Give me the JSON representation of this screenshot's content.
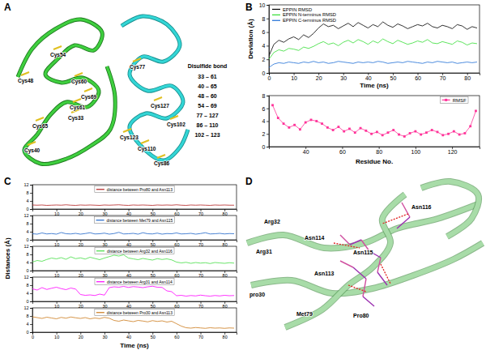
{
  "panel_labels": [
    "A",
    "B",
    "C",
    "D"
  ],
  "panel_a": {
    "residue_labels": [
      "Cys54",
      "Cys48",
      "Cys60",
      "Cys69",
      "Cys61",
      "Cys33",
      "Cys65",
      "Cys40",
      "Cys127",
      "Cys77",
      "Cys102",
      "Cys123",
      "Cys110",
      "Cys86"
    ],
    "table": {
      "title": "Disulfide bond",
      "rows": [
        "33 – 61",
        "40 – 65",
        "48 – 60",
        "54 – 69",
        "77 – 127",
        "86 – 110",
        "102 – 123"
      ]
    }
  },
  "panel_d": {
    "residue_labels": [
      "Asn116",
      "Arg32",
      "Arg31",
      "Asn114",
      "Asn115",
      "Asn113",
      "pro30",
      "Met79",
      "Pro80"
    ]
  },
  "chart_data": [
    {
      "type": "line",
      "x_label": "Time (ns)",
      "y_label": "Deviation (Å)",
      "x": [
        0,
        2,
        4,
        6,
        8,
        10,
        12,
        14,
        16,
        18,
        20,
        22,
        24,
        26,
        28,
        30,
        32,
        34,
        36,
        38,
        40,
        42,
        44,
        46,
        48,
        50,
        52,
        54,
        56,
        58,
        60,
        62,
        64,
        66,
        68,
        70,
        72,
        74,
        76,
        78,
        80,
        82,
        84
      ],
      "xlim": [
        0,
        85
      ],
      "xticks": [
        0,
        10,
        20,
        30,
        40,
        50,
        60,
        70,
        80
      ],
      "ylim": [
        0,
        10
      ],
      "yticks": [
        0,
        2,
        4,
        6,
        8,
        10
      ],
      "legend": "upper left",
      "series": [
        {
          "name": "EPPIN RMSD",
          "color": "#000000",
          "values": [
            2.5,
            4.2,
            4.8,
            4.5,
            5.0,
            5.3,
            4.9,
            5.6,
            5.2,
            5.8,
            6.6,
            7.2,
            6.8,
            7.0,
            6.5,
            6.9,
            7.3,
            6.8,
            7.4,
            7.0,
            6.6,
            7.1,
            6.8,
            7.5,
            7.0,
            6.7,
            7.2,
            6.9,
            6.5,
            6.8,
            7.1,
            6.9,
            7.3,
            6.8,
            6.6,
            7.0,
            6.8,
            6.5,
            7.1,
            6.9,
            6.4,
            6.8,
            6.6
          ]
        },
        {
          "name": "EPPIN N-terminus RMSD",
          "color": "#33dd33",
          "values": [
            2.0,
            3.0,
            3.4,
            3.2,
            3.6,
            3.5,
            3.3,
            3.8,
            3.6,
            3.9,
            4.3,
            4.6,
            4.2,
            4.4,
            4.0,
            4.5,
            4.8,
            4.4,
            4.9,
            4.6,
            4.2,
            4.7,
            4.4,
            5.0,
            4.6,
            4.3,
            4.8,
            4.5,
            4.2,
            4.4,
            4.7,
            4.5,
            4.9,
            4.4,
            4.3,
            4.6,
            4.4,
            4.2,
            4.7,
            4.5,
            4.1,
            4.4,
            4.3
          ]
        },
        {
          "name": "EPPIN C-terminus RMSD",
          "color": "#1f6fd6",
          "values": [
            0.8,
            1.3,
            1.5,
            1.4,
            1.6,
            1.5,
            1.4,
            1.6,
            1.5,
            1.7,
            1.5,
            1.6,
            1.4,
            1.5,
            1.7,
            1.6,
            1.5,
            1.4,
            1.6,
            1.5,
            1.6,
            1.5,
            1.7,
            1.6,
            1.4,
            1.5,
            1.6,
            1.5,
            1.7,
            1.6,
            1.5,
            1.4,
            1.6,
            1.5,
            1.7,
            1.6,
            1.5,
            1.6,
            1.4,
            1.5,
            1.6,
            1.5,
            1.6
          ]
        }
      ]
    },
    {
      "type": "line",
      "x_label": "Residue No.",
      "x": [
        22,
        25,
        28,
        31,
        34,
        37,
        40,
        43,
        46,
        49,
        52,
        55,
        58,
        61,
        64,
        67,
        70,
        73,
        76,
        79,
        82,
        85,
        88,
        91,
        94,
        97,
        100,
        103,
        106,
        109,
        112,
        115,
        118,
        121,
        124,
        127,
        130,
        133
      ],
      "xlim": [
        20,
        135
      ],
      "xticks": [
        40,
        60,
        80,
        100,
        120
      ],
      "ylim": [
        0,
        8
      ],
      "yticks": [
        0,
        2,
        4,
        6,
        8
      ],
      "legend": "upper right",
      "series": [
        {
          "name": "RMSF",
          "color": "#ff3399",
          "marker": "square",
          "values": [
            6.5,
            4.5,
            3.6,
            3.0,
            3.4,
            2.7,
            3.8,
            4.2,
            4.0,
            3.6,
            3.0,
            2.6,
            3.1,
            2.4,
            2.8,
            2.2,
            2.9,
            2.5,
            2.0,
            2.3,
            1.8,
            2.2,
            2.6,
            1.9,
            1.6,
            2.1,
            2.4,
            1.9,
            2.2,
            2.6,
            2.3,
            1.8,
            2.0,
            2.4,
            1.9,
            2.1,
            3.2,
            5.6
          ]
        }
      ]
    },
    {
      "type": "line",
      "x": [
        0,
        2,
        4,
        6,
        8,
        10,
        12,
        14,
        16,
        18,
        20,
        22,
        24,
        26,
        28,
        30,
        32,
        34,
        36,
        38,
        40,
        42,
        44,
        46,
        48,
        50,
        52,
        54,
        56,
        58,
        60,
        62,
        64,
        66,
        68,
        70,
        72,
        74,
        76,
        78,
        80,
        82,
        84
      ],
      "xlim": [
        0,
        85
      ],
      "xticks": [
        10,
        20,
        30,
        40,
        50,
        60,
        70,
        80
      ],
      "ylim": [
        0,
        12
      ],
      "yticks": [
        0,
        4,
        8,
        12
      ],
      "legend": "upper center",
      "series": [
        {
          "name": "distance between Pro80 and Asn113",
          "color": "#b22222",
          "values": [
            2.0,
            1.9,
            2.0,
            1.8,
            1.9,
            2.0,
            1.9,
            2.1,
            1.9,
            1.8,
            2.0,
            1.9,
            2.0,
            1.9,
            1.8,
            2.0,
            1.9,
            2.0,
            2.1,
            1.9,
            1.8,
            2.0,
            1.9,
            2.0,
            1.9,
            1.8,
            2.0,
            1.9,
            2.0,
            1.9,
            2.1,
            1.9,
            1.8,
            2.0,
            1.9,
            2.0,
            1.9,
            1.8,
            2.0,
            1.9,
            2.0,
            1.9,
            1.9
          ]
        }
      ]
    },
    {
      "type": "line",
      "x": [
        0,
        2,
        4,
        6,
        8,
        10,
        12,
        14,
        16,
        18,
        20,
        22,
        24,
        26,
        28,
        30,
        32,
        34,
        36,
        38,
        40,
        42,
        44,
        46,
        48,
        50,
        52,
        54,
        56,
        58,
        60,
        62,
        64,
        66,
        68,
        70,
        72,
        74,
        76,
        78,
        80,
        82,
        84
      ],
      "xlim": [
        0,
        85
      ],
      "xticks": [
        10,
        20,
        30,
        40,
        50,
        60,
        70,
        80
      ],
      "ylim": [
        0,
        12
      ],
      "yticks": [
        0,
        4,
        8,
        12
      ],
      "legend": "upper center",
      "series": [
        {
          "name": "distance between Met79 and Asn115",
          "color": "#1e64c8",
          "values": [
            3.0,
            2.8,
            3.4,
            2.9,
            3.1,
            2.8,
            3.6,
            3.0,
            2.9,
            3.2,
            2.8,
            3.1,
            3.5,
            2.9,
            3.0,
            3.3,
            2.8,
            3.1,
            3.7,
            2.9,
            3.0,
            3.2,
            2.8,
            3.5,
            3.0,
            2.9,
            3.3,
            2.8,
            3.1,
            3.0,
            3.4,
            2.9,
            3.0,
            3.2,
            2.8,
            3.1,
            3.5,
            2.9,
            3.0,
            3.2,
            2.9,
            3.1,
            3.0
          ]
        }
      ]
    },
    {
      "type": "line",
      "y_label": "Distances (Å)",
      "x": [
        0,
        2,
        4,
        6,
        8,
        10,
        12,
        14,
        16,
        18,
        20,
        22,
        24,
        26,
        28,
        30,
        32,
        34,
        36,
        38,
        40,
        42,
        44,
        46,
        48,
        50,
        52,
        54,
        56,
        58,
        60,
        62,
        64,
        66,
        68,
        70,
        72,
        74,
        76,
        78,
        80,
        82,
        84
      ],
      "xlim": [
        0,
        85
      ],
      "xticks": [
        10,
        20,
        30,
        40,
        50,
        60,
        70,
        80
      ],
      "ylim": [
        0,
        12
      ],
      "yticks": [
        0,
        4,
        8,
        12
      ],
      "legend": "upper center",
      "series": [
        {
          "name": "distance between Arg32 and Asn116",
          "color": "#44dd44",
          "values": [
            4.2,
            5.0,
            4.6,
            5.5,
            6.2,
            5.8,
            6.4,
            5.6,
            6.8,
            5.9,
            6.3,
            5.7,
            6.6,
            6.0,
            5.4,
            6.2,
            6.9,
            7.6,
            7.2,
            7.8,
            6.2,
            5.8,
            5.4,
            6.0,
            5.6,
            5.2,
            5.9,
            5.5,
            5.8,
            5.3,
            4.2,
            3.8,
            4.1,
            3.6,
            4.0,
            3.7,
            3.9,
            3.5,
            4.0,
            3.8,
            3.6,
            3.9,
            3.7
          ]
        }
      ]
    },
    {
      "type": "line",
      "x": [
        0,
        2,
        4,
        6,
        8,
        10,
        12,
        14,
        16,
        18,
        20,
        22,
        24,
        26,
        28,
        30,
        32,
        34,
        36,
        38,
        40,
        42,
        44,
        46,
        48,
        50,
        52,
        54,
        56,
        58,
        60,
        62,
        64,
        66,
        68,
        70,
        72,
        74,
        76,
        78,
        80,
        82,
        84
      ],
      "xlim": [
        0,
        85
      ],
      "xticks": [
        10,
        20,
        30,
        40,
        50,
        60,
        70,
        80
      ],
      "ylim": [
        0,
        12
      ],
      "yticks": [
        0,
        4,
        8,
        12
      ],
      "legend": "upper center",
      "series": [
        {
          "name": "distance between Arg31 and Asn114",
          "color": "#ff00ff",
          "values": [
            6.2,
            5.6,
            6.8,
            5.9,
            6.5,
            7.0,
            6.3,
            5.8,
            6.6,
            6.1,
            3.4,
            3.0,
            3.2,
            2.9,
            3.6,
            3.1,
            6.8,
            7.2,
            7.0,
            7.4,
            6.9,
            7.3,
            7.1,
            6.8,
            7.2,
            7.5,
            7.0,
            6.9,
            5.2,
            4.8,
            2.8,
            3.0,
            2.6,
            2.9,
            2.7,
            3.1,
            2.8,
            2.6,
            2.9,
            2.7,
            3.0,
            2.8,
            2.9
          ]
        }
      ]
    },
    {
      "type": "line",
      "x_label": "Time (ns)",
      "x": [
        0,
        2,
        4,
        6,
        8,
        10,
        12,
        14,
        16,
        18,
        20,
        22,
        24,
        26,
        28,
        30,
        32,
        34,
        36,
        38,
        40,
        42,
        44,
        46,
        48,
        50,
        52,
        54,
        56,
        58,
        60,
        62,
        64,
        66,
        68,
        70,
        72,
        74,
        76,
        78,
        80,
        82,
        84
      ],
      "xlim": [
        0,
        85
      ],
      "xticks": [
        0,
        10,
        20,
        30,
        40,
        50,
        60,
        70,
        80
      ],
      "ylim": [
        0,
        12
      ],
      "yticks": [
        0,
        4,
        8,
        12
      ],
      "legend": "upper center",
      "series": [
        {
          "name": "distance between Pro30 and Asn113",
          "color": "#cc7a1a",
          "values": [
            7.6,
            7.2,
            6.8,
            7.4,
            7.0,
            6.6,
            7.3,
            6.9,
            7.5,
            7.1,
            6.8,
            7.2,
            6.6,
            7.0,
            6.7,
            7.3,
            6.9,
            5.8,
            5.4,
            6.0,
            5.6,
            5.2,
            5.8,
            5.5,
            5.1,
            5.7,
            5.3,
            5.6,
            5.0,
            5.4,
            4.2,
            3.0,
            2.2,
            2.0,
            2.3,
            2.1,
            1.9,
            2.2,
            2.0,
            2.1,
            1.9,
            2.1,
            2.0
          ]
        }
      ]
    }
  ]
}
